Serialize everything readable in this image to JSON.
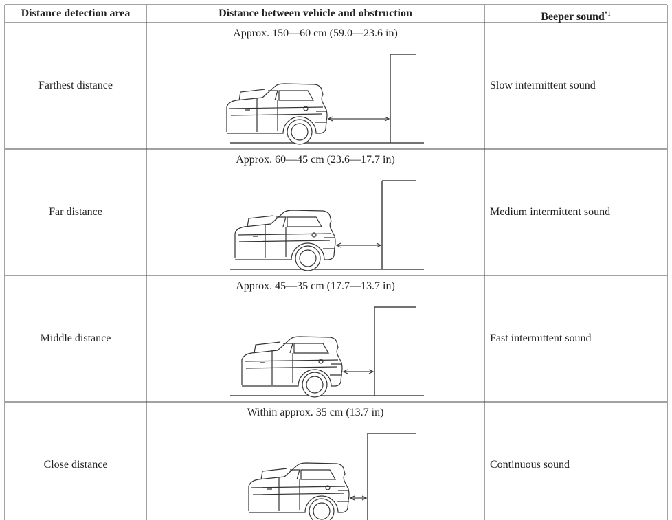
{
  "table": {
    "header": [
      "Distance detection area",
      "Distance between vehicle and obstruction",
      "Beeper sound"
    ],
    "header_superscript": "*1",
    "rows": [
      {
        "area": "Farthest distance",
        "distance": "Approx. 150—60 cm (59.0—23.6 in)",
        "sound": "Slow intermittent sound"
      },
      {
        "area": "Far distance",
        "distance": "Approx. 60—45 cm (23.6—17.7 in)",
        "sound": "Medium intermittent sound"
      },
      {
        "area": "Middle distance",
        "distance": "Approx. 45—35 cm (17.7—13.7 in)",
        "sound": "Fast intermittent sound"
      },
      {
        "area": "Close distance",
        "distance": "Within approx. 35 cm (13.7 in)",
        "sound": "Continuous sound"
      }
    ]
  }
}
